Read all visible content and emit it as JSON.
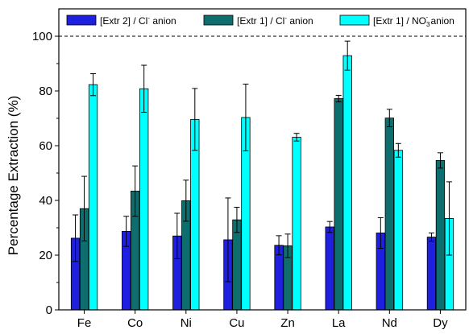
{
  "chart_data": {
    "type": "bar",
    "title": "",
    "xlabel": "",
    "ylabel": "Percentage Extraction (%)",
    "ylim": [
      0,
      110
    ],
    "yticks": [
      0,
      20,
      40,
      60,
      80,
      100
    ],
    "reference_line": 100,
    "grid": false,
    "legend_position": "top",
    "categories": [
      "Fe",
      "Co",
      "Ni",
      "Cu",
      "Zn",
      "La",
      "Nd",
      "Dy"
    ],
    "series": [
      {
        "legend": {
          "main": "[Extr 2] / Cl",
          "sup": "-",
          "sub": "",
          "suffix": " anion"
        },
        "color": "#1f1fe0",
        "values": [
          26.2,
          28.7,
          27.0,
          25.6,
          23.6,
          30.3,
          28.1,
          26.6
        ],
        "errors": [
          8.5,
          5.5,
          8.3,
          15.3,
          3.5,
          2.0,
          5.6,
          1.5
        ]
      },
      {
        "legend": {
          "main": "[Extr 1] / Cl",
          "sup": "-",
          "sub": "",
          "suffix": " anion"
        },
        "color": "#0e6e6e",
        "values": [
          37.0,
          43.4,
          39.9,
          32.9,
          23.4,
          77.2,
          70.1,
          54.6
        ],
        "errors": [
          11.8,
          9.2,
          7.5,
          4.6,
          4.3,
          1.2,
          3.2,
          2.8
        ]
      },
      {
        "legend": {
          "main": "[Extr 1] / NO",
          "sup": "-",
          "sub": "3",
          "suffix": " anion"
        },
        "color": "#00ffff",
        "values": [
          82.3,
          80.8,
          69.6,
          70.3,
          63.1,
          92.9,
          58.3,
          33.4
        ],
        "errors": [
          4.0,
          8.6,
          11.3,
          12.2,
          1.4,
          5.3,
          2.5,
          13.4
        ]
      }
    ]
  }
}
